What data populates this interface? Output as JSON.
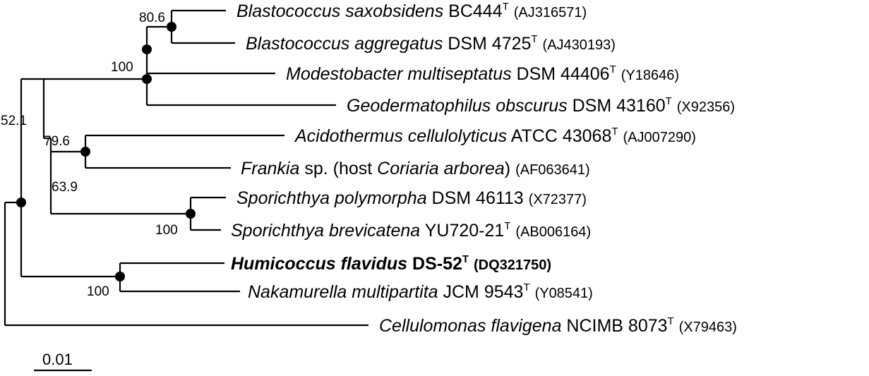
{
  "figure": "phylogenetic-tree",
  "taxa": [
    {
      "id": "t1",
      "genus_species": "Blastococcus saxobsidens",
      "strain": " BC444",
      "type_mark": "T",
      "accession": "(AJ316571)",
      "bold": false
    },
    {
      "id": "t2",
      "genus_species": "Blastococcus aggregatus",
      "strain": " DSM 4725",
      "type_mark": "T",
      "accession": "(AJ430193)",
      "bold": false
    },
    {
      "id": "t3",
      "genus_species": "Modestobacter multiseptatus",
      "strain": " DSM 44406",
      "type_mark": "T",
      "accession": "(Y18646)",
      "bold": false
    },
    {
      "id": "t4",
      "genus_species": "Geodermatophilus obscurus",
      "strain": " DSM 43160",
      "type_mark": "T",
      "accession": "(X92356)",
      "bold": false
    },
    {
      "id": "t5",
      "genus_species": "Acidothermus cellulolyticus",
      "strain": " ATCC 43068",
      "type_mark": "T",
      "accession": "(AJ007290)",
      "bold": false
    },
    {
      "id": "t6",
      "frankia": {
        "genus": "Frankia",
        "mid": " sp. (host ",
        "host": "Coriaria arborea",
        "close": ")"
      },
      "accession": "(AF063641)",
      "bold": false
    },
    {
      "id": "t7",
      "genus_species": "Sporichthya polymorpha",
      "strain": " DSM 46113",
      "type_mark": "",
      "accession": "(X72377)",
      "bold": false
    },
    {
      "id": "t8",
      "genus_species": "Sporichthya brevicatena",
      "strain": " YU720-21",
      "type_mark": "T",
      "accession": "(AB006164)",
      "bold": false
    },
    {
      "id": "t9",
      "genus_species": "Humicoccus flavidus",
      "strain": " DS-52",
      "type_mark": "T",
      "accession": "(DQ321750)",
      "bold": true
    },
    {
      "id": "t10",
      "genus_species": "Nakamurella multipartita",
      "strain": " JCM 9543",
      "type_mark": "T",
      "accession": "(Y08541)",
      "bold": false
    },
    {
      "id": "t11",
      "genus_species": "Cellulomonas flavigena",
      "strain": " NCIMB 8073",
      "type_mark": "T",
      "accession": "(X79463)",
      "bold": false
    }
  ],
  "support_values": {
    "blastococcus_clade": "80.6",
    "geodermatophilaceae_clade": "100",
    "ingroup_upper": "52.1",
    "acidothermus_frankia": "79.6",
    "frankia_sporichthya": "63.9",
    "sporichthya_clade": "100",
    "humicoccus_nakamurella": "100"
  },
  "scale_bar": {
    "label": "0.01"
  }
}
